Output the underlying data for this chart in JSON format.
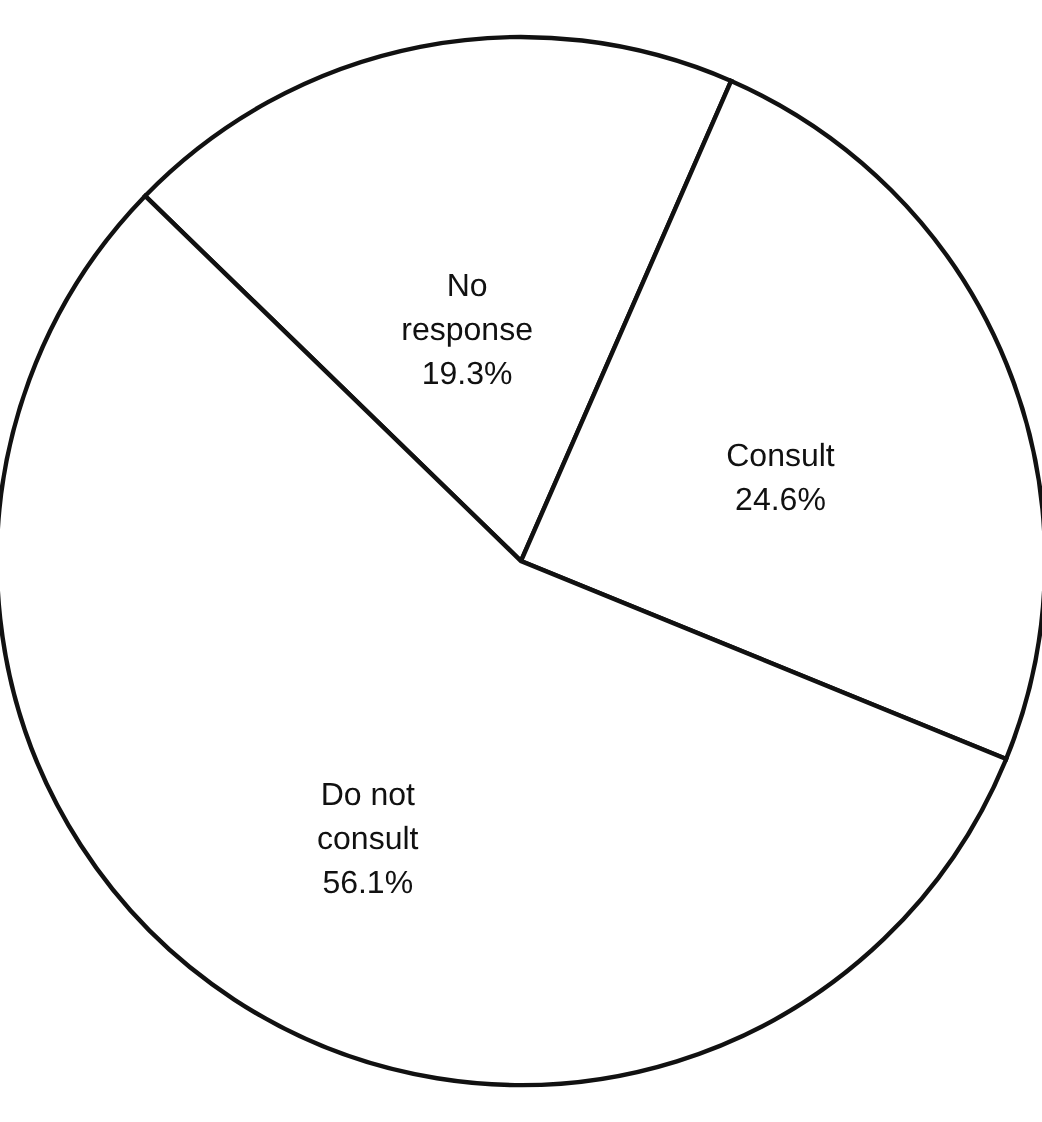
{
  "chart_data": {
    "type": "pie",
    "categories": [
      "No response",
      "Consult",
      "Do not consult"
    ],
    "values": [
      19.3,
      24.6,
      56.1
    ],
    "colors": [
      "#ffffff",
      "#ffffff",
      "#ffffff"
    ],
    "value_labels": [
      "19.3%",
      "24.6%",
      "56.1%"
    ]
  }
}
